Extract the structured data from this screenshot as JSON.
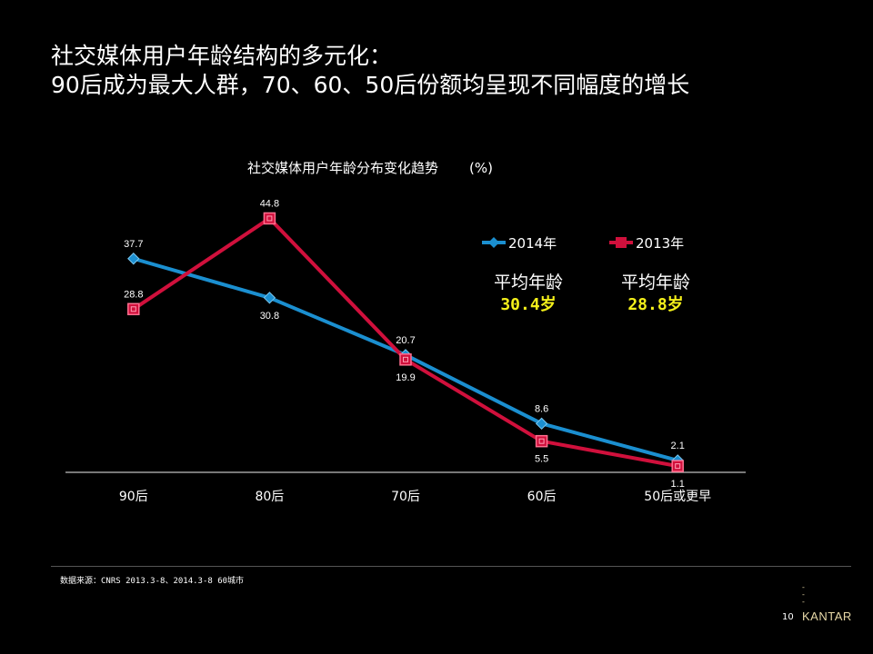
{
  "slide": {
    "headline_line1": "社交媒体用户年龄结构的多元化：",
    "headline_line2": "90后成为最大人群，70、60、50后份额均呈现不同幅度的增长",
    "source": "数据来源：CNRS 2013.3-8、2014.3-8  60城市",
    "page_number": "10",
    "brand": "KANTAR"
  },
  "averages": [
    {
      "label": "平均年龄",
      "value": "30.4岁"
    },
    {
      "label": "平均年龄",
      "value": "28.8岁"
    }
  ],
  "colors": {
    "series_2014": "#1b8fd0",
    "series_2013": "#d0103c",
    "average_value": "#f4f01a",
    "axis": "#bfbfbf"
  },
  "chart_data": {
    "type": "line",
    "title": "社交媒体用户年龄分布变化趋势",
    "unit": "(%)",
    "categories": [
      "90后",
      "80后",
      "70后",
      "60后",
      "50后或更早"
    ],
    "series": [
      {
        "name": "2014年",
        "values": [
          37.7,
          30.8,
          20.7,
          8.6,
          2.1
        ],
        "marker": "diamond"
      },
      {
        "name": "2013年",
        "values": [
          28.8,
          44.8,
          19.9,
          5.5,
          1.1
        ],
        "marker": "square"
      }
    ],
    "ylim": [
      0,
      50
    ],
    "grid": false,
    "legend": "top-right",
    "data_labels": true
  }
}
